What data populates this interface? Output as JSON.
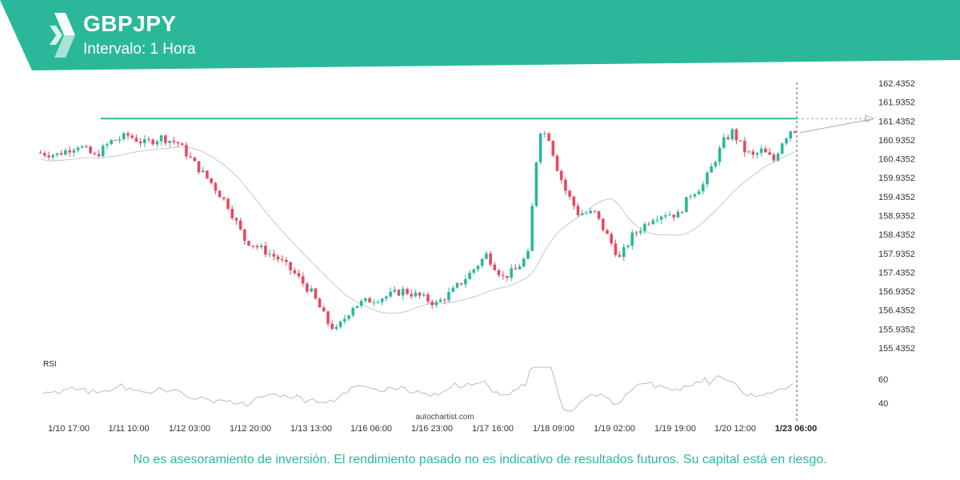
{
  "header": {
    "symbol": "GBPJPY",
    "interval": "Intervalo: 1 Hora",
    "brand_color": "#2bb89a"
  },
  "footer": {
    "watermark": "autochartist.com",
    "disclaimer": "No es asesoramiento de inversión. El rendimiento pasado no es indicativo de resultados futuros. Su capital está en riesgo."
  },
  "chart_data": {
    "type": "candlestick",
    "y_ticks": [
      "162.4352",
      "161.9352",
      "161.4352",
      "160.9352",
      "160.4352",
      "159.9352",
      "159.4352",
      "158.9352",
      "158.4352",
      "157.9352",
      "157.4352",
      "156.9352",
      "156.4352",
      "155.9352",
      "155.4352"
    ],
    "ylim": [
      155.2,
      162.55
    ],
    "x_ticks": [
      "1/10 17:00",
      "1/11 10:00",
      "1/12 03:00",
      "1/12 20:00",
      "1/13 13:00",
      "1/16 06:00",
      "1/16 23:00",
      "1/17 16:00",
      "1/18 09:00",
      "1/19 02:00",
      "1/19 19:00",
      "1/20 12:00",
      "1/23 06:00"
    ],
    "current_time_label": "1/23 06:00",
    "resistance_level": 161.5,
    "up_color": "#2bb89a",
    "down_color": "#e8495f",
    "price_path": [
      [
        0,
        160.6
      ],
      [
        5,
        160.55
      ],
      [
        10,
        160.8
      ],
      [
        14,
        160.5
      ],
      [
        18,
        160.9
      ],
      [
        22,
        161.05
      ],
      [
        26,
        160.85
      ],
      [
        30,
        161.0
      ],
      [
        34,
        160.85
      ],
      [
        38,
        160.3
      ],
      [
        42,
        159.8
      ],
      [
        46,
        159.2
      ],
      [
        50,
        158.3
      ],
      [
        54,
        158.05
      ],
      [
        58,
        157.8
      ],
      [
        62,
        157.4
      ],
      [
        66,
        156.9
      ],
      [
        70,
        156.1
      ],
      [
        72,
        155.9
      ],
      [
        76,
        156.55
      ],
      [
        80,
        156.7
      ],
      [
        84,
        156.8
      ],
      [
        88,
        156.95
      ],
      [
        92,
        156.8
      ],
      [
        96,
        156.6
      ],
      [
        100,
        156.95
      ],
      [
        104,
        157.4
      ],
      [
        108,
        157.9
      ],
      [
        112,
        157.3
      ],
      [
        115,
        157.5
      ],
      [
        118,
        157.9
      ],
      [
        120,
        160.4
      ],
      [
        121,
        161.2
      ],
      [
        123,
        161.0
      ],
      [
        125,
        160.2
      ],
      [
        127,
        159.6
      ],
      [
        130,
        159.0
      ],
      [
        134,
        159.0
      ],
      [
        136,
        158.6
      ],
      [
        138,
        158.2
      ],
      [
        140,
        157.8
      ],
      [
        143,
        158.4
      ],
      [
        146,
        158.7
      ],
      [
        148,
        158.9
      ],
      [
        151,
        159.0
      ],
      [
        154,
        158.95
      ],
      [
        157,
        159.5
      ],
      [
        160,
        159.75
      ],
      [
        162,
        160.2
      ],
      [
        165,
        160.9
      ],
      [
        167,
        161.15
      ],
      [
        170,
        160.65
      ],
      [
        172,
        160.5
      ],
      [
        174,
        160.65
      ],
      [
        177,
        160.4
      ],
      [
        179,
        160.9
      ],
      [
        181,
        161.2
      ]
    ],
    "rsi": {
      "label": "RSI",
      "ticks": [
        60,
        40
      ],
      "ylim": [
        25,
        75
      ]
    }
  }
}
